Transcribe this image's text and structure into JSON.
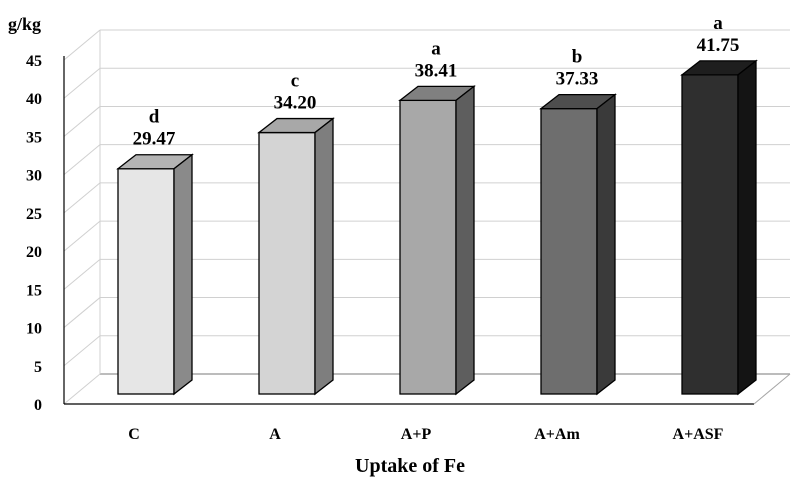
{
  "chart_data": {
    "type": "bar",
    "title": "",
    "xlabel": "Uptake of Fe",
    "ylabel": "g/kg",
    "ylim": [
      0,
      45
    ],
    "yticks": [
      0,
      5,
      10,
      15,
      20,
      25,
      30,
      35,
      40,
      45
    ],
    "categories": [
      "C",
      "A",
      "A+P",
      "A+Am",
      "A+ASF"
    ],
    "values": [
      29.47,
      34.2,
      38.41,
      37.33,
      41.75
    ],
    "value_labels": [
      "29.47",
      "34.20",
      "38.41",
      "37.33",
      "41.75"
    ],
    "significance_letters": [
      "d",
      "c",
      "a",
      "b",
      "a"
    ],
    "grid": true,
    "legend": "none",
    "bar_colors": [
      {
        "front": "#e6e6e6",
        "top": "#b4b4b4",
        "side": "#8a8a8a"
      },
      {
        "front": "#d4d4d4",
        "top": "#a8a8a8",
        "side": "#7e7e7e"
      },
      {
        "front": "#a8a8a8",
        "top": "#808080",
        "side": "#5e5e5e"
      },
      {
        "front": "#6e6e6e",
        "top": "#4e4e4e",
        "side": "#3a3a3a"
      },
      {
        "front": "#2f2f2f",
        "top": "#1e1e1e",
        "side": "#141414"
      }
    ],
    "gridline_color": "#d0d0d0",
    "floor_color": "#a6a6a6"
  }
}
